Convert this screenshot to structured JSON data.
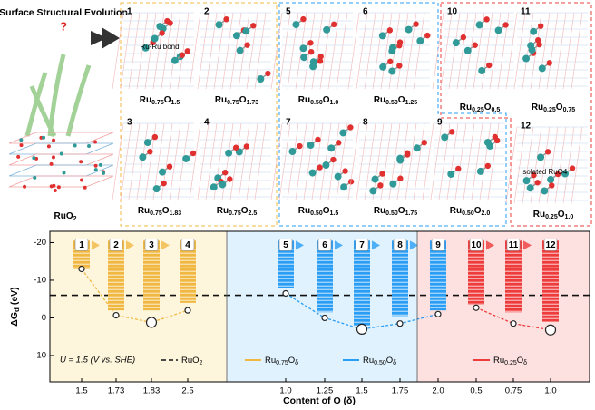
{
  "header": {
    "title": "Surface Structural Evolution",
    "question": "?",
    "bulk_label": [
      "RuO",
      "2"
    ]
  },
  "structures": [
    {
      "number": 1,
      "formula": [
        "Ru",
        "0.75",
        "O",
        "1.5"
      ],
      "note": "Ru-Ru bond"
    },
    {
      "number": 2,
      "formula": [
        "Ru",
        "0.75",
        "O",
        "1.73"
      ]
    },
    {
      "number": 3,
      "formula": [
        "Ru",
        "0.75",
        "O",
        "1.83"
      ]
    },
    {
      "number": 4,
      "formula": [
        "Ru",
        "0.75",
        "O",
        "2.5"
      ]
    },
    {
      "number": 5,
      "formula": [
        "Ru",
        "0.50",
        "O",
        "1.0"
      ]
    },
    {
      "number": 6,
      "formula": [
        "Ru",
        "0.50",
        "O",
        "1.25"
      ]
    },
    {
      "number": 7,
      "formula": [
        "Ru",
        "0.50",
        "O",
        "1.5"
      ]
    },
    {
      "number": 8,
      "formula": [
        "Ru",
        "0.50",
        "O",
        "1.75"
      ]
    },
    {
      "number": 9,
      "formula": [
        "Ru",
        "0.50",
        "O",
        "2.0"
      ]
    },
    {
      "number": 10,
      "formula": [
        "Ru",
        "0.25",
        "O",
        "0.5"
      ]
    },
    {
      "number": 11,
      "formula": [
        "Ru",
        "0.25",
        "O",
        "0.75"
      ]
    },
    {
      "number": 12,
      "formula": [
        "Ru",
        "0.25",
        "O",
        "1.0"
      ],
      "note": "isolated RuO4"
    }
  ],
  "chart_data": {
    "type": "scatter",
    "ylabel": [
      "ΔG",
      "d",
      " (eV)"
    ],
    "xlabel": "Content of O (δ)",
    "ylim": [
      17,
      -23
    ],
    "yticks": [
      -20,
      -10,
      0,
      10
    ],
    "annotation": "U = 1.5 (V vs. SHE)",
    "reference": {
      "name": [
        "RuO",
        "2"
      ],
      "value": -6
    },
    "series": [
      {
        "name": [
          "Ru",
          "0.75",
          "O",
          "δ"
        ],
        "color": "#f0b840",
        "background": "#fdf5dc",
        "steps": [
          1,
          2,
          3,
          4
        ],
        "categories": [
          "1.5",
          "1.73",
          "1.83",
          "2.5"
        ],
        "values": [
          -13,
          -0.7,
          1.2,
          -2
        ],
        "bar_top": [
          -20.5,
          -20.5,
          -20.5,
          -20.5
        ],
        "bar_bottom": [
          -13,
          -2,
          -2,
          -4
        ]
      },
      {
        "name": [
          "Ru",
          "0.50",
          "O",
          "δ"
        ],
        "color": "#2a9df4",
        "background": "#dff2fd",
        "steps": [
          5,
          6,
          7,
          8,
          9
        ],
        "categories": [
          "1.0",
          "1.25",
          "1.5",
          "1.75",
          "2.0"
        ],
        "values": [
          -6.5,
          0,
          3,
          1.5,
          -1
        ],
        "bar_top": [
          -20.5,
          -20.5,
          -20.5,
          -20.5,
          -20.5
        ],
        "bar_bottom": [
          -8,
          -1.5,
          2,
          -0.5,
          -2
        ]
      },
      {
        "name": [
          "Ru",
          "0.25",
          "O",
          "δ"
        ],
        "color": "#ee3b3b",
        "background": "#fde0e0",
        "steps": [
          10,
          11,
          12
        ],
        "categories": [
          "0.5",
          "0.75",
          "1.0"
        ],
        "values": [
          -2.7,
          1.5,
          3.2
        ],
        "bar_top": [
          -20.5,
          -20.5,
          -20.5
        ],
        "bar_bottom": [
          -3.5,
          -1.5,
          1
        ]
      }
    ]
  }
}
